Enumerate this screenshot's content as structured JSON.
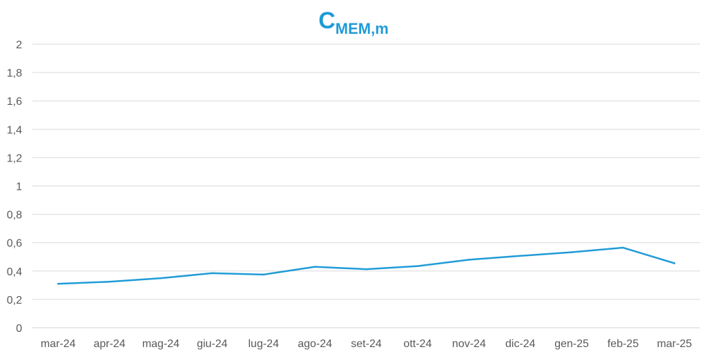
{
  "chart_data": {
    "type": "line",
    "title_main": "C",
    "title_sub": "MEM,m",
    "categories": [
      "mar-24",
      "apr-24",
      "mag-24",
      "giu-24",
      "lug-24",
      "ago-24",
      "set-24",
      "ott-24",
      "nov-24",
      "dic-24",
      "gen-25",
      "feb-25",
      "mar-25"
    ],
    "y_tick_labels": [
      "0",
      "0,2",
      "0,4",
      "0,6",
      "0,8",
      "1",
      "1,2",
      "1,4",
      "1,6",
      "1,8",
      "2"
    ],
    "series": [
      {
        "values": [
          0.31,
          0.325,
          0.35,
          0.385,
          0.375,
          0.43,
          0.413,
          0.435,
          0.48,
          0.507,
          0.533,
          0.565,
          0.455
        ]
      }
    ],
    "ylim": [
      0,
      2
    ],
    "grid": true,
    "legend": "none",
    "line_color": "#1f9bd7",
    "title_color": "#1f9bd7"
  }
}
